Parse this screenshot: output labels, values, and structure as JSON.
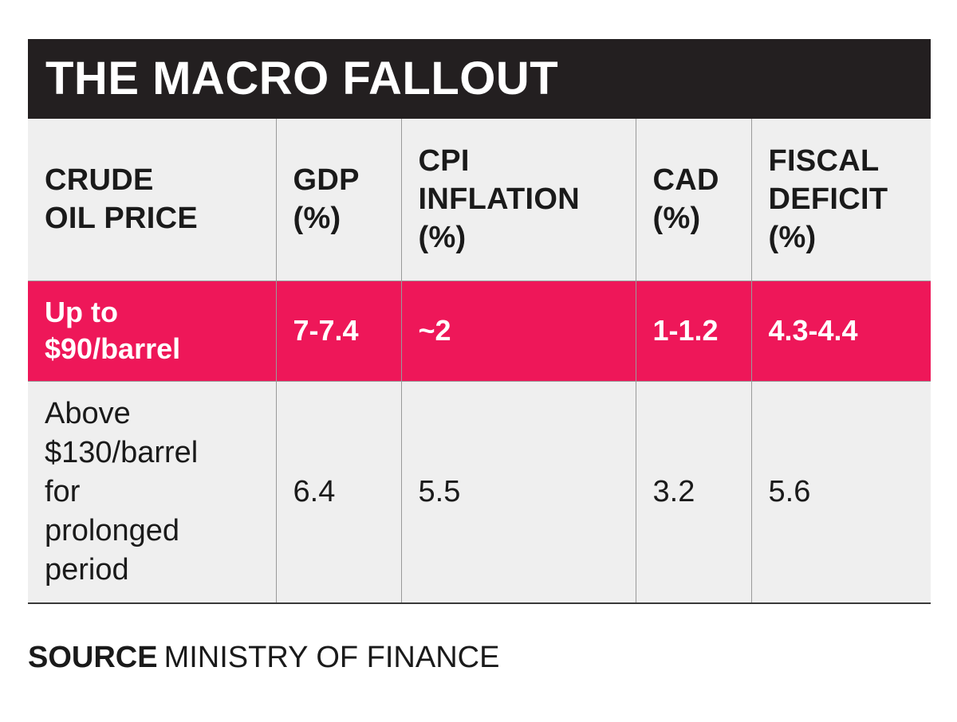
{
  "title": "THE MACRO FALLOUT",
  "table": {
    "headers": [
      "CRUDE\nOIL PRICE",
      "GDP\n(%)",
      "CPI\nINFLATION\n(%)",
      "CAD\n(%)",
      "FISCAL\nDEFICIT\n(%)"
    ],
    "rows": [
      {
        "highlight": true,
        "cells": [
          "Up to\n$90/barrel",
          "7-7.4",
          "~2",
          "1-1.2",
          "4.3-4.4"
        ]
      },
      {
        "highlight": false,
        "cells": [
          "Above\n$130/barrel\nfor\nprolonged\nperiod",
          "6.4",
          "5.5",
          "3.2",
          "5.6"
        ]
      }
    ]
  },
  "source": {
    "label": "SOURCE",
    "text": "MINISTRY OF FINANCE"
  },
  "colors": {
    "title_bar": "#231f20",
    "highlight_row": "#ee1759",
    "cell_background": "#efefef"
  }
}
